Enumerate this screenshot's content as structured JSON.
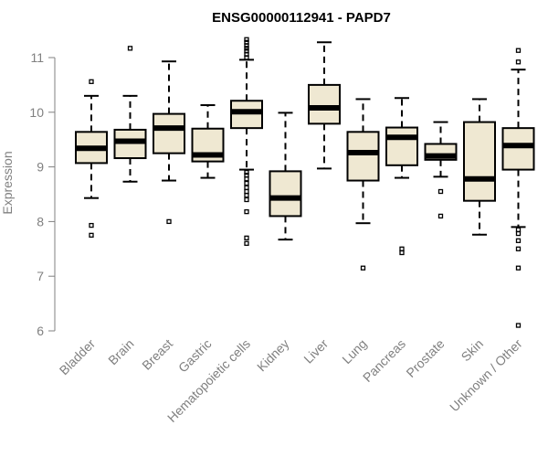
{
  "chart_data": {
    "type": "boxplot",
    "title": "ENSG00000112941 - PAPD7",
    "ylabel": "Expression",
    "xlabel": "",
    "ylim": [
      6,
      11.3
    ],
    "yticks": [
      6,
      7,
      8,
      9,
      10,
      11
    ],
    "grid": false,
    "box_fill": "#efe8d2",
    "categories": [
      "Bladder",
      "Brain",
      "Breast",
      "Gastric",
      "Hematopoietic cells",
      "Kidney",
      "Liver",
      "Lung",
      "Pancreas",
      "Prostate",
      "Skin",
      "Unknown / Other"
    ],
    "boxes": [
      {
        "whislo": 8.43,
        "q1": 9.07,
        "med": 9.34,
        "q3": 9.64,
        "whishi": 10.3,
        "fliers": [
          10.56,
          7.93,
          7.75
        ]
      },
      {
        "whislo": 8.73,
        "q1": 9.16,
        "med": 9.47,
        "q3": 9.68,
        "whishi": 10.3,
        "fliers": [
          11.17
        ]
      },
      {
        "whislo": 8.75,
        "q1": 9.25,
        "med": 9.71,
        "q3": 9.97,
        "whishi": 10.93,
        "fliers": [
          8.0
        ]
      },
      {
        "whislo": 8.8,
        "q1": 9.1,
        "med": 9.22,
        "q3": 9.7,
        "whishi": 10.13,
        "fliers": []
      },
      {
        "whislo": 8.95,
        "q1": 9.71,
        "med": 10.01,
        "q3": 10.21,
        "whishi": 10.96,
        "fliers": [
          11.33,
          11.28,
          11.22,
          11.17,
          11.12,
          11.06,
          11.0,
          8.9,
          8.85,
          8.78,
          8.7,
          8.62,
          8.55,
          8.48,
          8.4,
          8.18,
          7.7,
          7.6
        ]
      },
      {
        "whislo": 7.67,
        "q1": 8.1,
        "med": 8.43,
        "q3": 8.92,
        "whishi": 9.99,
        "fliers": []
      },
      {
        "whislo": 8.97,
        "q1": 9.79,
        "med": 10.08,
        "q3": 10.5,
        "whishi": 11.28,
        "fliers": []
      },
      {
        "whislo": 7.97,
        "q1": 8.75,
        "med": 9.26,
        "q3": 9.64,
        "whishi": 10.24,
        "fliers": [
          7.15
        ]
      },
      {
        "whislo": 8.8,
        "q1": 9.03,
        "med": 9.54,
        "q3": 9.72,
        "whishi": 10.26,
        "fliers": [
          7.5,
          7.43
        ]
      },
      {
        "whislo": 8.82,
        "q1": 9.13,
        "med": 9.2,
        "q3": 9.42,
        "whishi": 9.82,
        "fliers": [
          8.55,
          8.1
        ]
      },
      {
        "whislo": 7.76,
        "q1": 8.38,
        "med": 8.78,
        "q3": 9.82,
        "whishi": 10.24,
        "fliers": []
      },
      {
        "whislo": 7.9,
        "q1": 8.95,
        "med": 9.39,
        "q3": 9.71,
        "whishi": 10.78,
        "fliers": [
          11.13,
          10.92,
          7.85,
          7.78,
          7.65,
          7.5,
          7.15,
          6.1
        ]
      }
    ]
  }
}
